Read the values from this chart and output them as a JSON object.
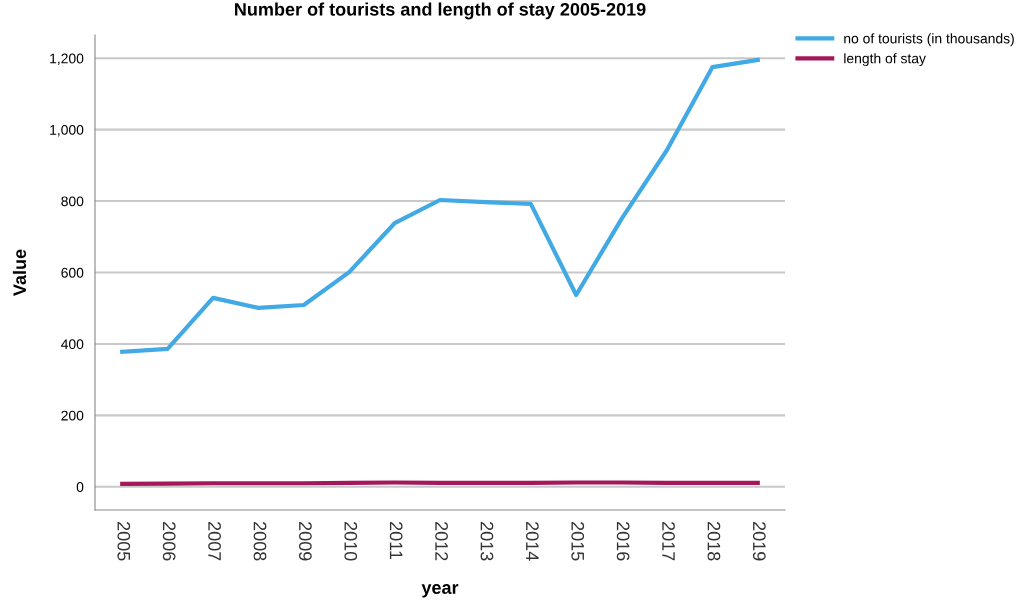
{
  "chart_data": {
    "type": "line",
    "title": "Number of tourists and length of stay 2005-2019",
    "xlabel": "year",
    "ylabel": "Value",
    "categories": [
      "2005",
      "2006",
      "2007",
      "2008",
      "2009",
      "2010",
      "2011",
      "2012",
      "2013",
      "2014",
      "2015",
      "2016",
      "2017",
      "2018",
      "2019"
    ],
    "series": [
      {
        "name": "no of tourists (in thousands)",
        "color": "#41a9e4",
        "values": [
          378,
          386,
          529,
          501,
          509,
          601,
          738,
          803,
          797,
          792,
          537,
          750,
          943,
          1175,
          1195
        ]
      },
      {
        "name": "length of stay",
        "color": "#a3185a",
        "values": [
          8,
          9,
          10,
          10,
          10,
          11,
          12,
          11,
          11,
          11,
          12,
          12,
          11,
          11,
          11
        ]
      }
    ],
    "ylim": [
      -65,
      1265
    ],
    "yticks": [
      0,
      200,
      400,
      600,
      800,
      {
        "value": 1000,
        "label": "1,000"
      },
      {
        "value": 1200,
        "label": "1,200"
      }
    ],
    "grid": "y",
    "legend": "top right",
    "line_style": "solid",
    "marker": "none"
  }
}
